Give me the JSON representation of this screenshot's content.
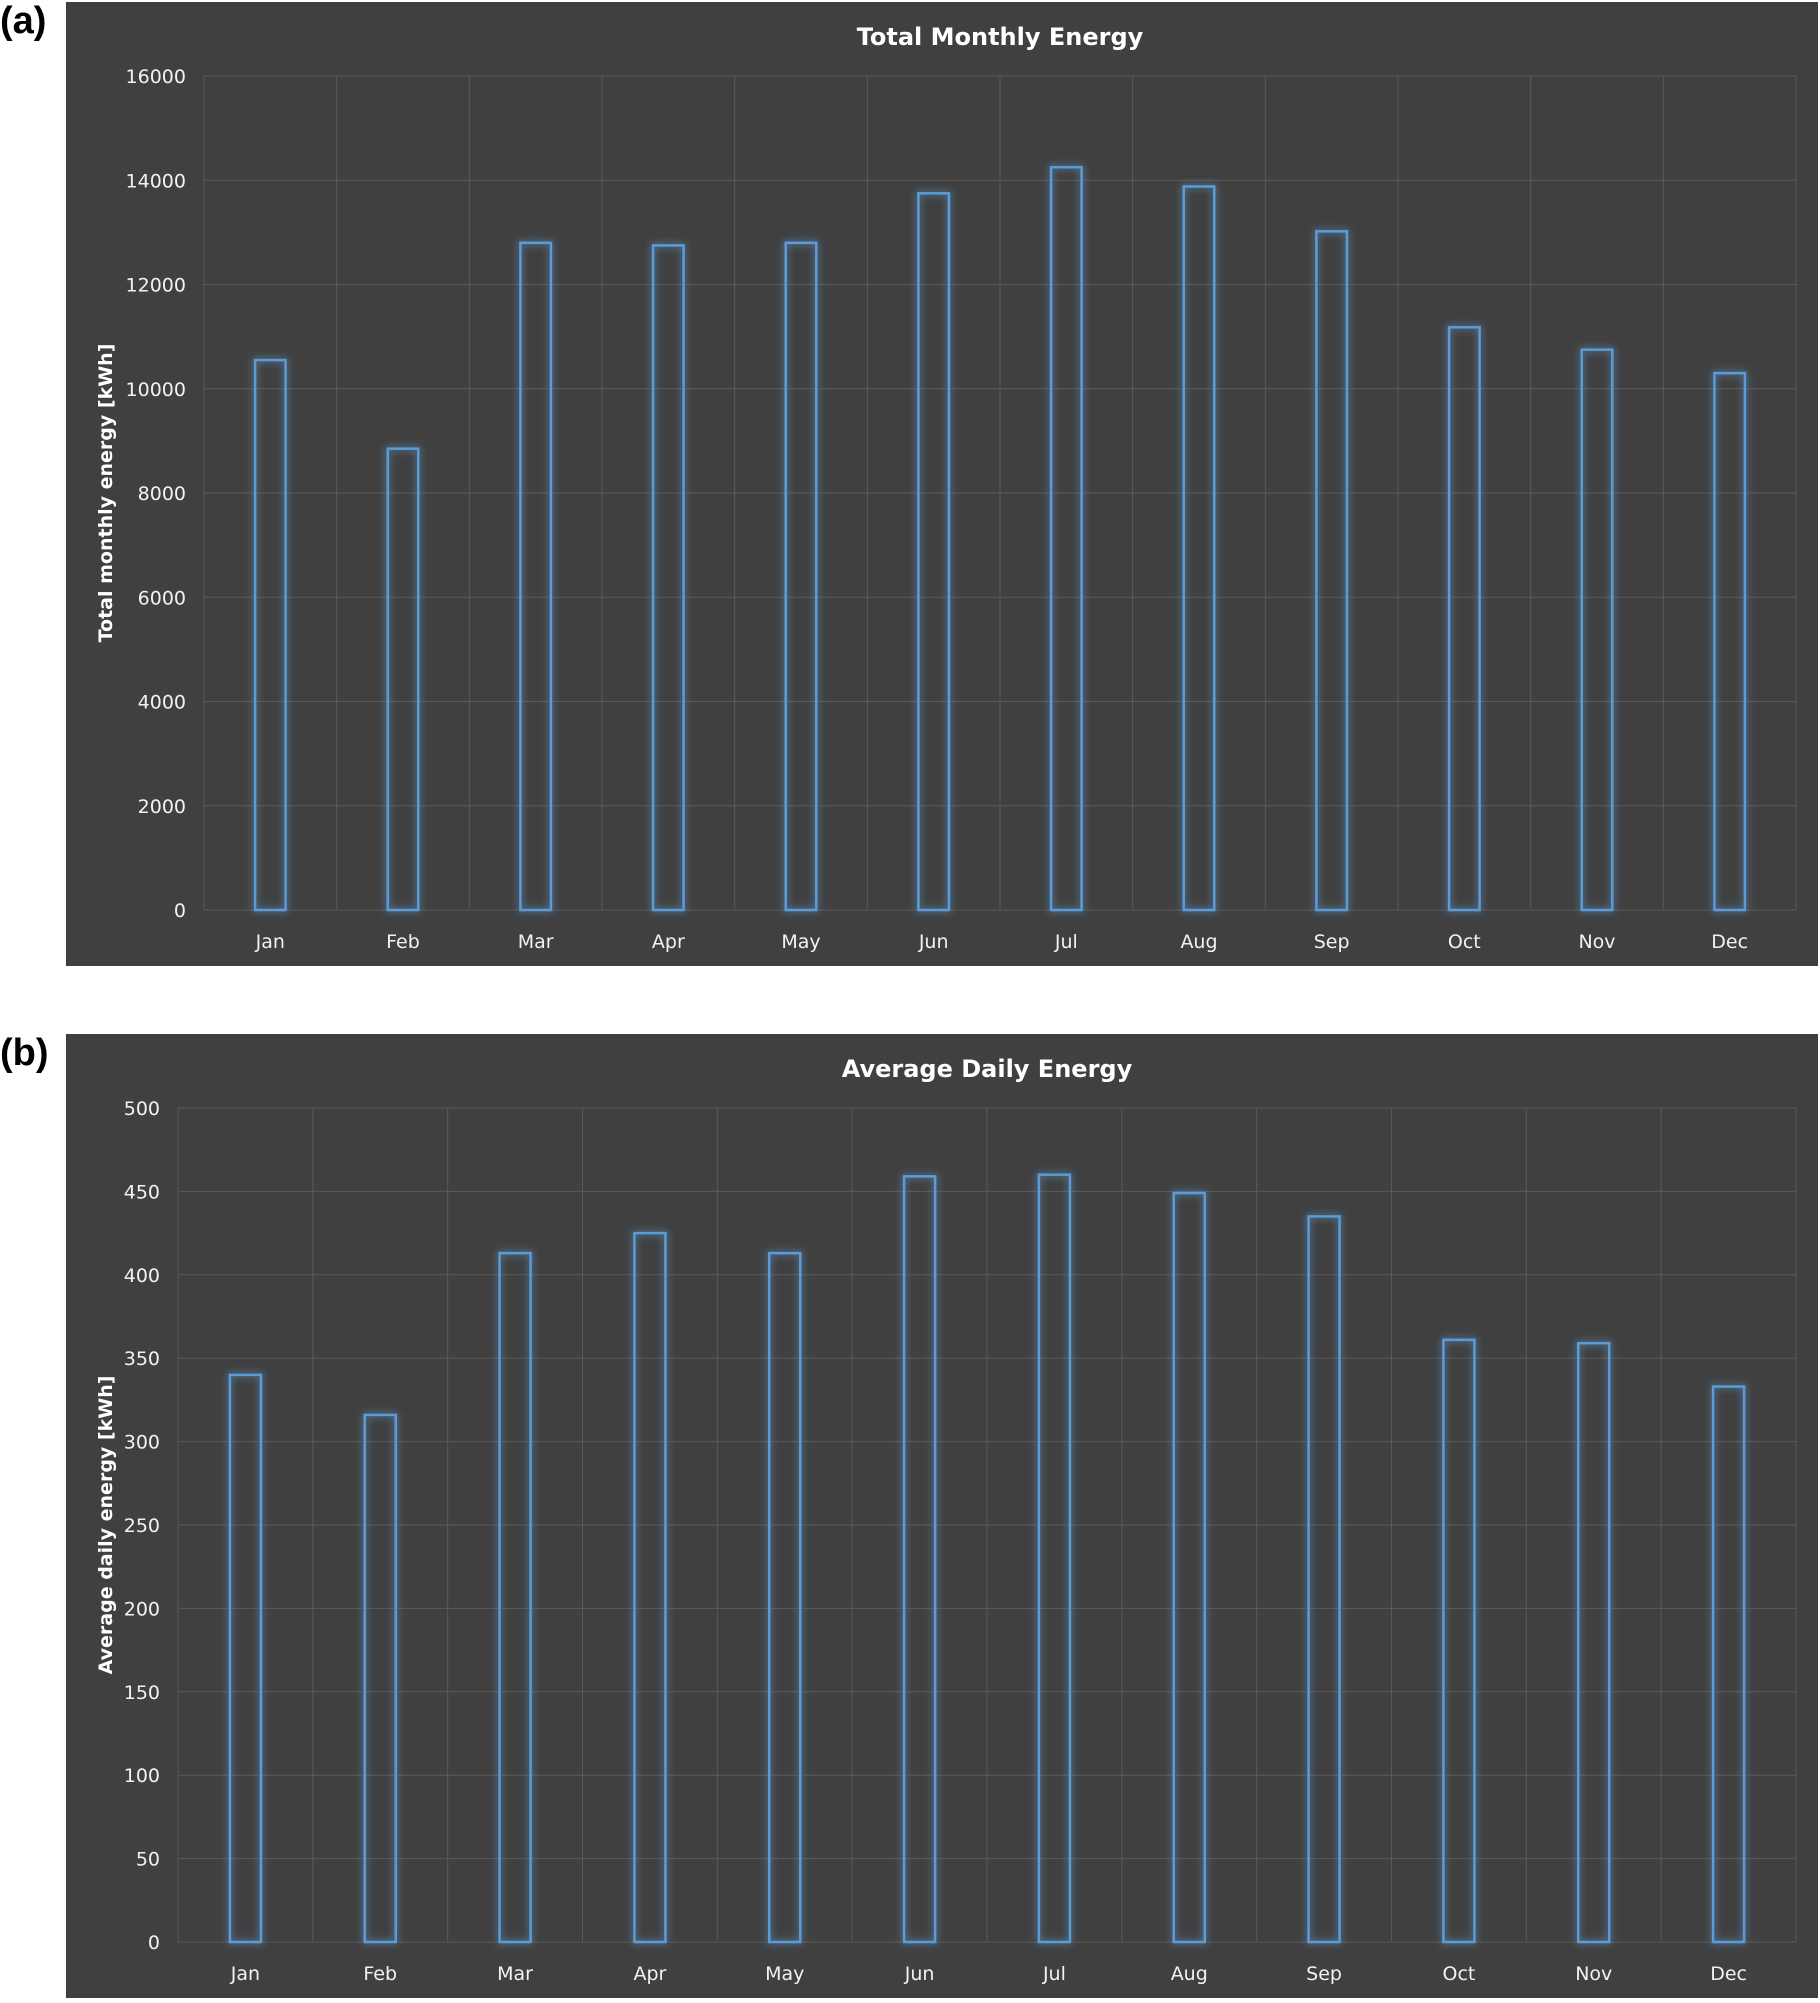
{
  "panels": {
    "a": {
      "label": "(a)"
    },
    "b": {
      "label": "(b)"
    }
  },
  "colors": {
    "background": "#404040",
    "gridline": "#5a5a5a",
    "bar_outline": "#5b9bd5",
    "text": "#ffffff",
    "tick_text": "#f2f2f2"
  },
  "chart_data": [
    {
      "type": "bar",
      "title": "Total Monthly Energy",
      "xlabel": "",
      "ylabel": "Total monthly energy [kWh]",
      "categories": [
        "Jan",
        "Feb",
        "Mar",
        "Apr",
        "May",
        "Jun",
        "Jul",
        "Aug",
        "Sep",
        "Oct",
        "Nov",
        "Dec"
      ],
      "values": [
        10550,
        8850,
        12800,
        12750,
        12800,
        13750,
        14250,
        13880,
        13020,
        11180,
        10750,
        10300
      ],
      "ylim": [
        0,
        16000
      ],
      "yticks": [
        "0",
        "2000",
        "4000",
        "6000",
        "8000",
        "10000",
        "12000",
        "14000",
        "16000"
      ],
      "grid": true,
      "bar_style": "outlined glow"
    },
    {
      "type": "bar",
      "title": "Average Daily Energy",
      "xlabel": "",
      "ylabel": "Average daily energy [kWh]",
      "categories": [
        "Jan",
        "Feb",
        "Mar",
        "Apr",
        "May",
        "Jun",
        "Jul",
        "Aug",
        "Sep",
        "Oct",
        "Nov",
        "Dec"
      ],
      "values": [
        340,
        316,
        413,
        425,
        413,
        459,
        460,
        449,
        435,
        361,
        359,
        333
      ],
      "ylim": [
        0,
        500
      ],
      "yticks": [
        "0",
        "50",
        "100",
        "150",
        "200",
        "250",
        "300",
        "350",
        "400",
        "450",
        "500"
      ],
      "grid": true,
      "bar_style": "outlined glow"
    }
  ]
}
